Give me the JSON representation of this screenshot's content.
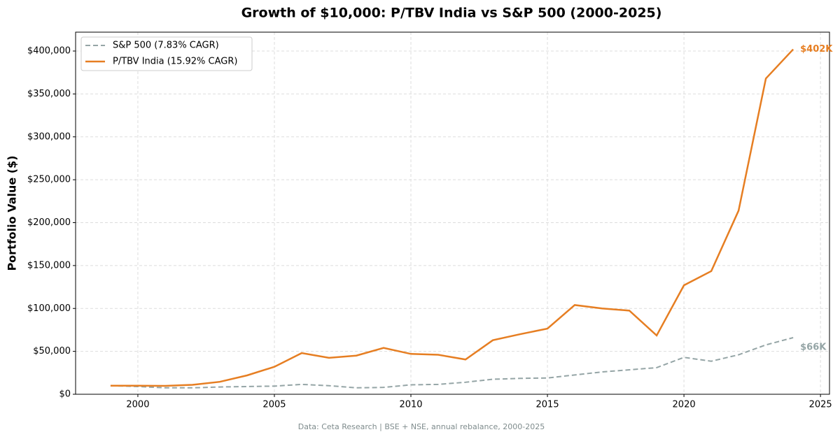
{
  "chart_data": {
    "type": "line",
    "title": "Growth of $10,000: P/TBV India vs S&P 500 (2000-2025)",
    "ylabel": "Portfolio Value ($)",
    "footnote": "Data: Ceta Research | BSE + NSE, annual rebalance, 2000-2025",
    "x": [
      1999,
      2000,
      2001,
      2002,
      2003,
      2004,
      2005,
      2006,
      2007,
      2008,
      2009,
      2010,
      2011,
      2012,
      2013,
      2014,
      2015,
      2016,
      2017,
      2018,
      2019,
      2020,
      2021,
      2022,
      2023,
      2024
    ],
    "series": [
      {
        "name": "S&P 500 (7.83% CAGR)",
        "color": "#95a5a6",
        "dashed": true,
        "end_label": "$66K",
        "values": [
          10000,
          9000,
          7500,
          7500,
          8500,
          9000,
          9500,
          11500,
          10000,
          7500,
          8000,
          11000,
          11500,
          14000,
          17500,
          18500,
          19000,
          22500,
          26000,
          28500,
          31000,
          43000,
          38500,
          46000,
          57500,
          66000
        ]
      },
      {
        "name": "P/TBV India (15.92% CAGR)",
        "color": "#e67e22",
        "dashed": false,
        "end_label": "$402K",
        "values": [
          10000,
          10000,
          9800,
          11000,
          14500,
          22000,
          32000,
          48000,
          42500,
          45000,
          54000,
          47000,
          46000,
          40500,
          63000,
          70000,
          76500,
          104000,
          100000,
          97500,
          68500,
          127000,
          143500,
          214000,
          368000,
          402000
        ]
      }
    ],
    "xlim": [
      1997.72,
      2025.33
    ],
    "xticks": [
      2000,
      2005,
      2010,
      2015,
      2020,
      2025
    ],
    "ylim": [
      0,
      422000
    ],
    "yticks": [
      {
        "value": 0,
        "label": "$0"
      },
      {
        "value": 50000,
        "label": "$50,000"
      },
      {
        "value": 100000,
        "label": "$100,000"
      },
      {
        "value": 150000,
        "label": "$150,000"
      },
      {
        "value": 200000,
        "label": "$200,000"
      },
      {
        "value": 250000,
        "label": "$250,000"
      },
      {
        "value": 300000,
        "label": "$300,000"
      },
      {
        "value": 350000,
        "label": "$350,000"
      },
      {
        "value": 400000,
        "label": "$400,000"
      }
    ],
    "grid": true,
    "legend": "upper-left"
  }
}
